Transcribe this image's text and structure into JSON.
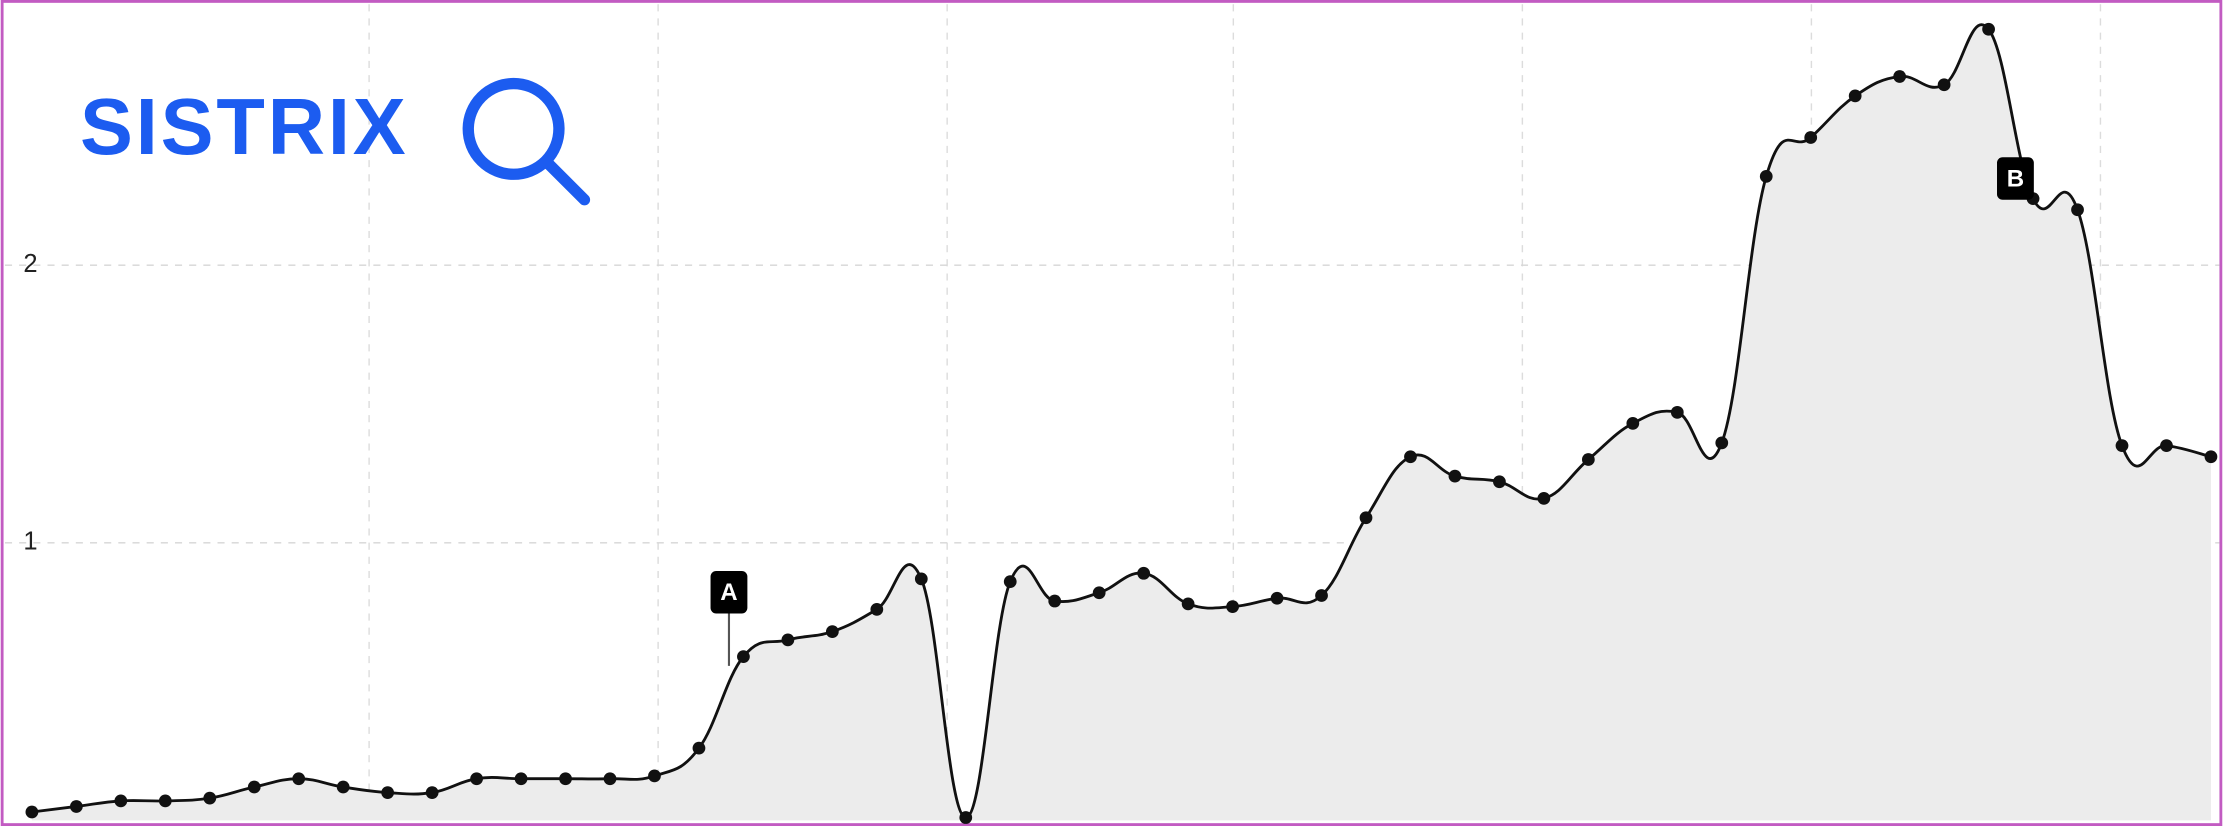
{
  "logo": "SISTRIX",
  "chart_data": {
    "type": "area",
    "values": [
      0.03,
      0.05,
      0.07,
      0.07,
      0.08,
      0.12,
      0.15,
      0.12,
      0.1,
      0.1,
      0.15,
      0.15,
      0.15,
      0.15,
      0.16,
      0.26,
      0.59,
      0.65,
      0.68,
      0.76,
      0.87,
      0.01,
      0.86,
      0.79,
      0.82,
      0.89,
      0.78,
      0.77,
      0.8,
      0.81,
      1.09,
      1.31,
      1.24,
      1.22,
      1.16,
      1.3,
      1.43,
      1.47,
      1.36,
      2.32,
      2.46,
      2.61,
      2.68,
      2.65,
      2.85,
      2.24,
      2.2,
      1.35,
      1.35,
      1.31
    ],
    "color": "#111111",
    "ylim": [
      0,
      2.93
    ],
    "yticks": [
      1,
      2
    ],
    "grid": true,
    "annotations": [
      {
        "label": "A"
      },
      {
        "label": "B"
      }
    ]
  }
}
